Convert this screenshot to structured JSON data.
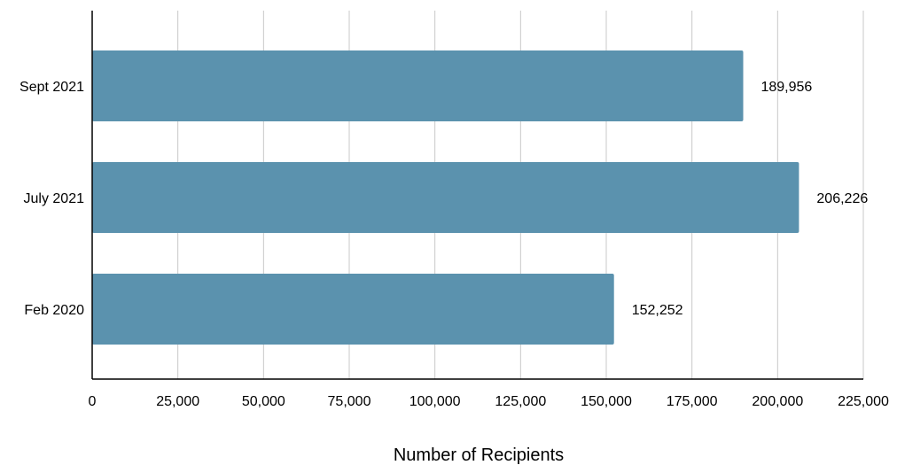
{
  "chart_data": {
    "type": "bar",
    "orientation": "horizontal",
    "title": "",
    "xlabel": "Number of Recipients",
    "ylabel": "",
    "categories": [
      "Sept 2021",
      "July 2021",
      "Feb 2020"
    ],
    "values": [
      189956,
      206226,
      152252
    ],
    "value_labels": [
      "189,956",
      "206,226",
      "152,252"
    ],
    "xlim": [
      0,
      225000
    ],
    "xticks": [
      0,
      25000,
      50000,
      75000,
      100000,
      125000,
      150000,
      175000,
      200000,
      225000
    ],
    "xtick_labels": [
      "0",
      "25,000",
      "50,000",
      "75,000",
      "100,000",
      "125,000",
      "150,000",
      "175,000",
      "200,000",
      "225,000"
    ],
    "grid": "vertical",
    "legend": "none",
    "bar_color": "#5b92ae"
  }
}
